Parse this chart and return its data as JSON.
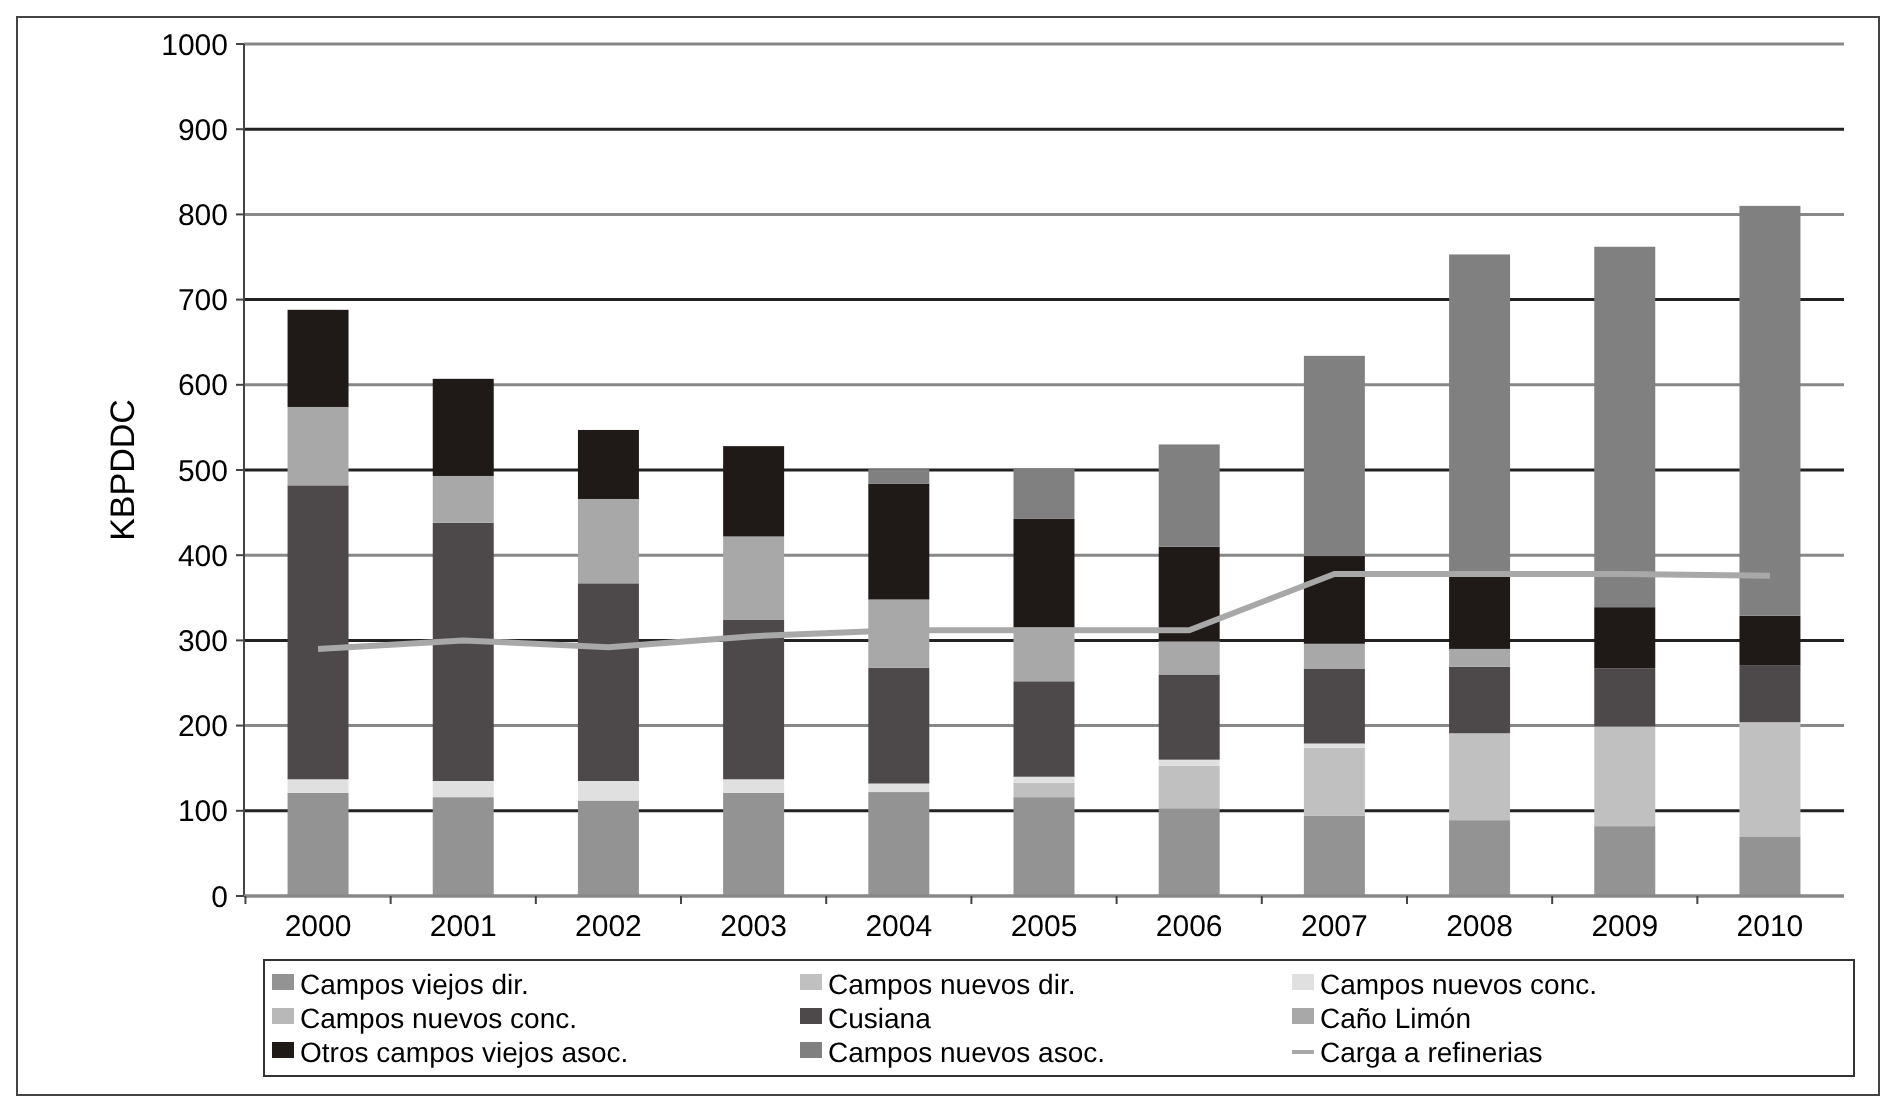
{
  "chart_data": {
    "type": "bar",
    "stacked": true,
    "ylabel": "KBPDDC",
    "categories": [
      "2000",
      "2001",
      "2002",
      "2003",
      "2004",
      "2005",
      "2006",
      "2007",
      "2008",
      "2009",
      "2010"
    ],
    "ylim": [
      0,
      1000
    ],
    "yticks": [
      0,
      100,
      200,
      300,
      400,
      500,
      600,
      700,
      800,
      900,
      1000
    ],
    "grid": "y",
    "legend": "bottom",
    "series": [
      {
        "name": "Campos viejos dir.",
        "color": "#939393",
        "values": [
          121,
          116,
          112,
          121,
          122,
          116,
          103,
          94,
          89,
          82,
          70
        ]
      },
      {
        "name": "Campos nuevos dir.",
        "color": "#c0c0c0",
        "values": [
          0,
          0,
          0,
          0,
          0,
          17,
          50,
          80,
          102,
          117,
          134
        ]
      },
      {
        "name": "Campos nuevos conc.",
        "color": "#e0e0e0",
        "values": [
          16,
          19,
          23,
          16,
          10,
          7,
          7,
          5,
          null,
          null,
          0
        ]
      },
      {
        "name": "Campos nuevos conc.",
        "color": "#b8b8b8",
        "values": [
          0,
          0,
          0,
          0,
          0,
          0,
          0,
          0,
          0,
          0,
          0
        ]
      },
      {
        "name": "Cusiana",
        "color": "#4d4849",
        "values": [
          345,
          303,
          232,
          187,
          136,
          112,
          100,
          88,
          78,
          68,
          67
        ]
      },
      {
        "name": "Caño Limón",
        "color": "#a8a8a8",
        "values": [
          92,
          55,
          99,
          98,
          80,
          63,
          39,
          29,
          21,
          0,
          0
        ]
      },
      {
        "name": "Otros campos viejos asoc.",
        "color": "#1f1a17",
        "values": [
          114,
          114,
          81,
          106,
          136,
          128,
          111,
          103,
          89,
          72,
          58
        ]
      },
      {
        "name": "Campos nuevos asoc.",
        "color": "#808080",
        "values": [
          0,
          0,
          0,
          0,
          17,
          59,
          120,
          235,
          374,
          423,
          481
        ]
      },
      {
        "name": "Carga a refinerias",
        "type": "line",
        "color": "#a8a8a8",
        "values": [
          290,
          300,
          292,
          305,
          312,
          312,
          312,
          378,
          378,
          378,
          376
        ]
      }
    ]
  }
}
